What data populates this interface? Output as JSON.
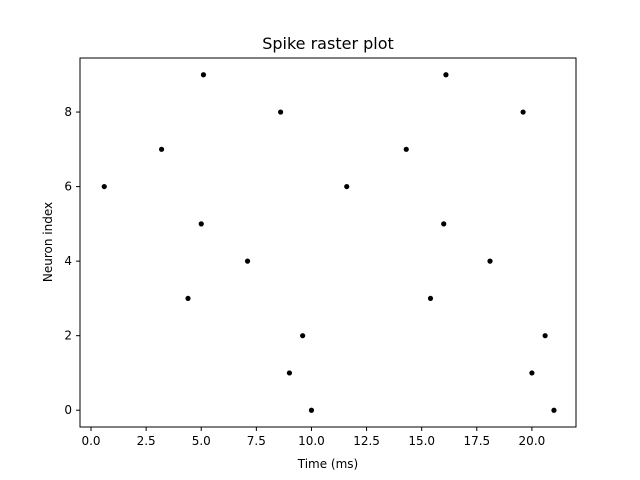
{
  "chart_data": {
    "type": "scatter",
    "title": "Spike raster plot",
    "xlabel": "Time (ms)",
    "ylabel": "Neuron index",
    "xlim": [
      -0.5,
      22.0
    ],
    "ylim": [
      -0.45,
      9.45
    ],
    "xticks": [
      0.0,
      2.5,
      5.0,
      7.5,
      10.0,
      12.5,
      15.0,
      17.5,
      20.0
    ],
    "xtick_labels": [
      "0.0",
      "2.5",
      "5.0",
      "7.5",
      "10.0",
      "12.5",
      "15.0",
      "17.5",
      "20.0"
    ],
    "yticks": [
      0,
      2,
      4,
      6,
      8
    ],
    "ytick_labels": [
      "0",
      "2",
      "4",
      "6",
      "8"
    ],
    "grid": false,
    "marker_color": "#000000",
    "points": [
      {
        "x": 0.6,
        "y": 6
      },
      {
        "x": 3.2,
        "y": 7
      },
      {
        "x": 4.4,
        "y": 3
      },
      {
        "x": 5.0,
        "y": 5
      },
      {
        "x": 5.1,
        "y": 9
      },
      {
        "x": 7.1,
        "y": 4
      },
      {
        "x": 8.6,
        "y": 8
      },
      {
        "x": 9.0,
        "y": 1
      },
      {
        "x": 9.6,
        "y": 2
      },
      {
        "x": 10.0,
        "y": 0
      },
      {
        "x": 11.6,
        "y": 6
      },
      {
        "x": 14.3,
        "y": 7
      },
      {
        "x": 15.4,
        "y": 3
      },
      {
        "x": 16.0,
        "y": 5
      },
      {
        "x": 16.1,
        "y": 9
      },
      {
        "x": 18.1,
        "y": 4
      },
      {
        "x": 19.6,
        "y": 8
      },
      {
        "x": 20.0,
        "y": 1
      },
      {
        "x": 20.6,
        "y": 2
      },
      {
        "x": 21.0,
        "y": 0
      }
    ]
  }
}
